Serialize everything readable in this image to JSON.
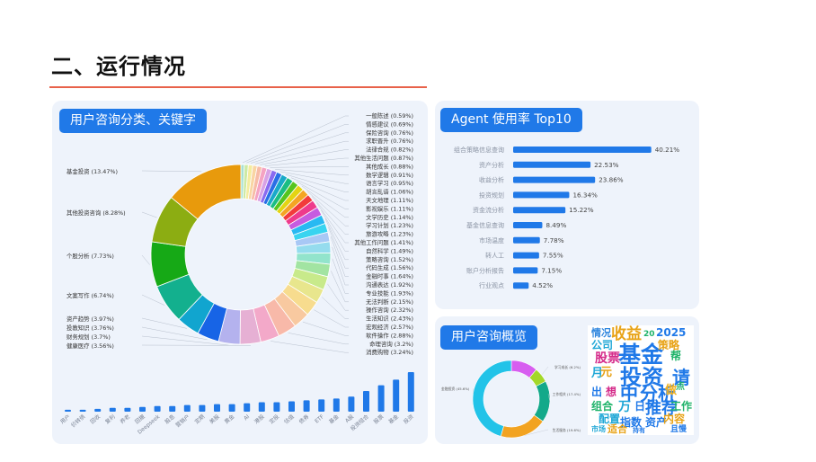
{
  "page": {
    "title": "二、运行情况"
  },
  "left_panel": {
    "badge": "用户咨询分类、关键字"
  },
  "right_top": {
    "badge": "Agent 使用率 Top10"
  },
  "right_bottom": {
    "badge": "用户咨询概览"
  },
  "colors": {
    "accent": "#2079e8",
    "title_rule": "#e8624a",
    "panel_bg": "#eef3fb"
  },
  "chart_data": [
    {
      "type": "pie",
      "variant": "donut",
      "slices": [
        {
          "label": "基金投资",
          "value": 13.47,
          "display": "基金投资 (13.47%)",
          "color": "#e89a0c",
          "side": "left"
        },
        {
          "label": "其他投资咨询",
          "value": 8.28,
          "display": "其他投资咨询 (8.28%)",
          "color": "#8cad12",
          "side": "left"
        },
        {
          "label": "个股分析",
          "value": 7.73,
          "display": "个股分析 (7.73%)",
          "color": "#16a916",
          "side": "left"
        },
        {
          "label": "文案写作",
          "value": 6.74,
          "display": "文案写作 (6.74%)",
          "color": "#13b08e",
          "side": "left"
        },
        {
          "label": "资产趋势",
          "value": 3.97,
          "display": "资产趋势 (3.97%)",
          "color": "#11a5cf",
          "side": "left"
        },
        {
          "label": "投教知识",
          "value": 3.76,
          "display": "投教知识 (3.76%)",
          "color": "#1764e6",
          "side": "left"
        },
        {
          "label": "财务规划",
          "value": 3.7,
          "display": "财务规划 (3.7%)",
          "color": "#b4b2ee",
          "side": "left"
        },
        {
          "label": "健康医疗",
          "value": 3.56,
          "display": "健康医疗 (3.56%)",
          "color": "#e6b0d4",
          "side": "left"
        },
        {
          "label": "消费购物",
          "value": 3.24,
          "display": "消费购物 (3.24%)",
          "color": "#f3a9c9",
          "side": "right"
        },
        {
          "label": "命理咨询",
          "value": 3.2,
          "display": "命理咨询 (3.2%)",
          "color": "#f8b9a9",
          "side": "right"
        },
        {
          "label": "软件操作",
          "value": 2.88,
          "display": "软件操作 (2.88%)",
          "color": "#f8c9a0",
          "side": "right"
        },
        {
          "label": "宏观经济",
          "value": 2.57,
          "display": "宏观经济 (2.57%)",
          "color": "#f7dc8e",
          "side": "right"
        },
        {
          "label": "生活知识",
          "value": 2.43,
          "display": "生活知识 (2.43%)",
          "color": "#e8e68d",
          "side": "right"
        },
        {
          "label": "操作咨询",
          "value": 2.32,
          "display": "操作咨询 (2.32%)",
          "color": "#c8ea8b",
          "side": "right"
        },
        {
          "label": "无法判断",
          "value": 2.15,
          "display": "无法判断 (2.15%)",
          "color": "#a2e4a2",
          "side": "right"
        },
        {
          "label": "专业技能",
          "value": 1.93,
          "display": "专业技能 (1.93%)",
          "color": "#92e4cc",
          "side": "right"
        },
        {
          "label": "沟通表达",
          "value": 1.92,
          "display": "沟通表达 (1.92%)",
          "color": "#95dcee",
          "side": "right"
        },
        {
          "label": "金融时事",
          "value": 1.64,
          "display": "金融时事 (1.64%)",
          "color": "#a8c8f5",
          "side": "right"
        },
        {
          "label": "代码生成",
          "value": 1.56,
          "display": "代码生成 (1.56%)",
          "color": "#38d4f0",
          "side": "right"
        },
        {
          "label": "策略咨询",
          "value": 1.52,
          "display": "策略咨询 (1.52%)",
          "color": "#28b9f2",
          "side": "right"
        },
        {
          "label": "自然科学",
          "value": 1.49,
          "display": "自然科学 (1.49%)",
          "color": "#c65ce0",
          "side": "right"
        },
        {
          "label": "其他工作问题",
          "value": 1.41,
          "display": "其他工作问题 (1.41%)",
          "color": "#ee3a8c",
          "side": "right"
        },
        {
          "label": "旅游攻略",
          "value": 1.23,
          "display": "旅游攻略 (1.23%)",
          "color": "#f23b3b",
          "side": "right"
        },
        {
          "label": "学习计划",
          "value": 1.23,
          "display": "学习计划 (1.23%)",
          "color": "#f4a523",
          "side": "right"
        },
        {
          "label": "文学历史",
          "value": 1.14,
          "display": "文学历史 (1.14%)",
          "color": "#e4d412",
          "side": "right"
        },
        {
          "label": "影视娱乐",
          "value": 1.11,
          "display": "影视娱乐 (1.11%)",
          "color": "#56c51e",
          "side": "right"
        },
        {
          "label": "天文地理",
          "value": 1.11,
          "display": "天文地理 (1.11%)",
          "color": "#1bbd83",
          "side": "right"
        },
        {
          "label": "胡言乱语",
          "value": 1.06,
          "display": "胡言乱语 (1.06%)",
          "color": "#1aa9c9",
          "side": "right"
        },
        {
          "label": "语言学习",
          "value": 0.95,
          "display": "语言学习 (0.95%)",
          "color": "#2a6fe6",
          "side": "right"
        },
        {
          "label": "数学逻辑",
          "value": 0.91,
          "display": "数学逻辑 (0.91%)",
          "color": "#8a6bf0",
          "side": "right"
        },
        {
          "label": "其他成长",
          "value": 0.88,
          "display": "其他成长 (0.88%)",
          "color": "#d9a2e5",
          "side": "right"
        },
        {
          "label": "其他生活问题",
          "value": 0.87,
          "display": "其他生活问题 (0.87%)",
          "color": "#f5a3c2",
          "side": "right"
        },
        {
          "label": "法律合规",
          "value": 0.82,
          "display": "法律合规 (0.82%)",
          "color": "#f7bca6",
          "side": "right"
        },
        {
          "label": "求职晋升",
          "value": 0.76,
          "display": "求职晋升 (0.76%)",
          "color": "#f9d5a3",
          "side": "right"
        },
        {
          "label": "保险咨询",
          "value": 0.76,
          "display": "保险咨询 (0.76%)",
          "color": "#f4ec9e",
          "side": "right"
        },
        {
          "label": "情感建议",
          "value": 0.69,
          "display": "情感建议 (0.69%)",
          "color": "#cdeaa5",
          "side": "right"
        },
        {
          "label": "一般陈述",
          "value": 0.59,
          "display": "一般陈述 (0.59%)",
          "color": "#a7e0d3",
          "side": "right"
        }
      ]
    },
    {
      "type": "bar",
      "orientation": "vertical",
      "categories": [
        "用户",
        "价转债",
        "回收",
        "复利",
        "养老",
        "回撤",
        "Deepseek",
        "股息",
        "营销户",
        "定期",
        "美股",
        "黄金",
        "AI",
        "港股",
        "定投",
        "估值",
        "债券",
        "ETF",
        "基金",
        "A股",
        "投资组合",
        "股票",
        "基金",
        "投资"
      ],
      "values": [
        1,
        1,
        1.5,
        2,
        2,
        2.5,
        3,
        3,
        3.5,
        3.5,
        4,
        4,
        4.5,
        5,
        5,
        5.5,
        6,
        6.5,
        7,
        8,
        11,
        14,
        17,
        21
      ],
      "note_axis": "no y axis printed; values are relative heights"
    },
    {
      "type": "bar",
      "orientation": "horizontal",
      "title": "Agent 使用率 Top10",
      "categories": [
        "组合策略信息查询",
        "资产分析",
        "收益分析",
        "投资规划",
        "资金流分析",
        "基金信息查询",
        "市场温度",
        "转人工",
        "账户分析报告",
        "行业观点"
      ],
      "values": [
        40.21,
        22.53,
        23.86,
        16.34,
        15.22,
        8.49,
        7.78,
        7.55,
        7.15,
        4.52
      ],
      "value_labels": [
        "40.21%",
        "22.53%",
        "23.86%",
        "16.34%",
        "15.22%",
        "8.49%",
        "7.78%",
        "7.55%",
        "7.15%",
        "4.52%"
      ],
      "xlim": [
        0,
        45
      ],
      "color": "#2079e8"
    },
    {
      "type": "pie",
      "variant": "donut",
      "title": "用户咨询概览",
      "slices": [
        {
          "label": "金融投资",
          "value": 45.6,
          "display": "金融投资 (45.6%)",
          "color": "#22c3e8"
        },
        {
          "label": "生活服务",
          "value": 19.6,
          "display": "生活服务 (19.6%)",
          "color": "#f2a321"
        },
        {
          "label": "工作相关",
          "value": 17.4,
          "display": "工作相关 (17.4%)",
          "color": "#13a98a"
        },
        {
          "label": "学习成长",
          "value": 6.2,
          "display": "学习成长 (6.2%)",
          "color": "#a3d82a"
        },
        {
          "label": "其他",
          "value": 11.2,
          "display": "",
          "color": "#d75ef0"
        }
      ]
    }
  ],
  "wordcloud": {
    "words": [
      {
        "text": "情况",
        "color": "#2e86de"
      },
      {
        "text": "收益",
        "color": "#e8a317"
      },
      {
        "text": "2025",
        "color": "#2079e8"
      },
      {
        "text": "20",
        "color": "#1fb36a"
      },
      {
        "text": "公司",
        "color": "#1fa7d6"
      },
      {
        "text": "基金",
        "color": "#2079e8"
      },
      {
        "text": "策略",
        "color": "#e8a317"
      },
      {
        "text": "帮",
        "color": "#1fb36a"
      },
      {
        "text": "股票",
        "color": "#d52b8a"
      },
      {
        "text": "投资",
        "color": "#2079e8"
      },
      {
        "text": "请",
        "color": "#2079e8"
      },
      {
        "text": "月",
        "color": "#1fa7d6"
      },
      {
        "text": "元",
        "color": "#e8a317"
      },
      {
        "text": "出",
        "color": "#2079e8"
      },
      {
        "text": "想",
        "color": "#d52b8a"
      },
      {
        "text": "中",
        "color": "#2079e8"
      },
      {
        "text": "分析",
        "color": "#2079e8"
      },
      {
        "text": "做",
        "color": "#f0b020"
      },
      {
        "text": "点",
        "color": "#1fb36a"
      },
      {
        "text": "万",
        "color": "#1fa7d6"
      },
      {
        "text": "日",
        "color": "#2079e8"
      },
      {
        "text": "推荐",
        "color": "#2079e8"
      },
      {
        "text": "工作",
        "color": "#1fb36a"
      },
      {
        "text": "组合",
        "color": "#1fb36a"
      },
      {
        "text": "配置",
        "color": "#1fa7d6"
      },
      {
        "text": "指数",
        "color": "#2079e8"
      },
      {
        "text": "资产",
        "color": "#2079e8"
      },
      {
        "text": "内容",
        "color": "#e8a317"
      },
      {
        "text": "市场",
        "color": "#1fa7d6"
      },
      {
        "text": "适合",
        "color": "#e8a317"
      },
      {
        "text": "持有",
        "color": "#2079e8"
      },
      {
        "text": "且慢",
        "color": "#2079e8"
      }
    ]
  }
}
